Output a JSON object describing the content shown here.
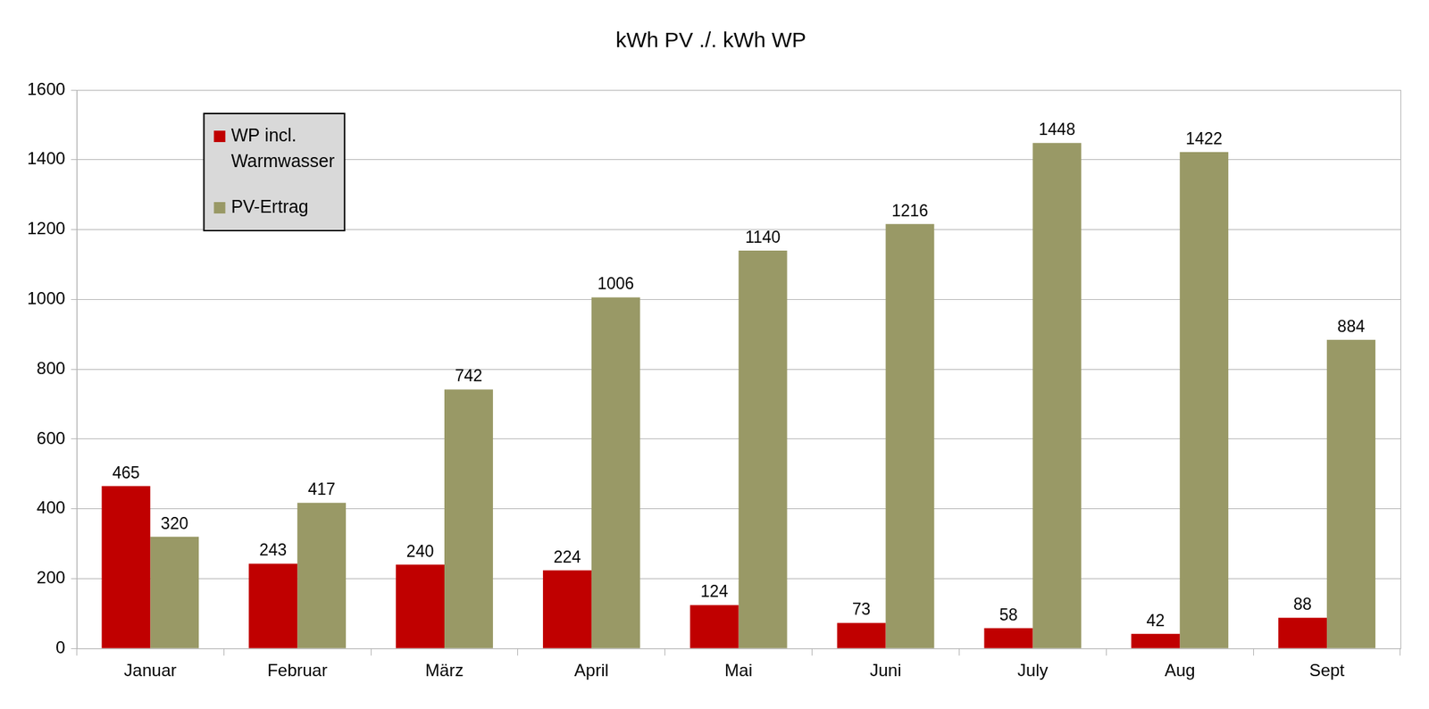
{
  "chart_data": {
    "type": "bar",
    "title": "kWh PV ./. kWh WP",
    "categories": [
      "Januar",
      "Februar",
      "März",
      "April",
      "Mai",
      "Juni",
      "July",
      "Aug",
      "Sept"
    ],
    "series": [
      {
        "name": "WP incl. Warmwasser",
        "color": "#c00000",
        "values": [
          465,
          243,
          240,
          224,
          124,
          73,
          58,
          42,
          88
        ]
      },
      {
        "name": "PV-Ertrag",
        "color": "#999966",
        "values": [
          320,
          417,
          742,
          1006,
          1140,
          1216,
          1448,
          1422,
          884
        ]
      }
    ],
    "ylim": [
      0,
      1600
    ],
    "yticks": [
      0,
      200,
      400,
      600,
      800,
      1000,
      1200,
      1400,
      1600
    ],
    "grid": true,
    "legend": "top-left",
    "data_labels": true
  }
}
